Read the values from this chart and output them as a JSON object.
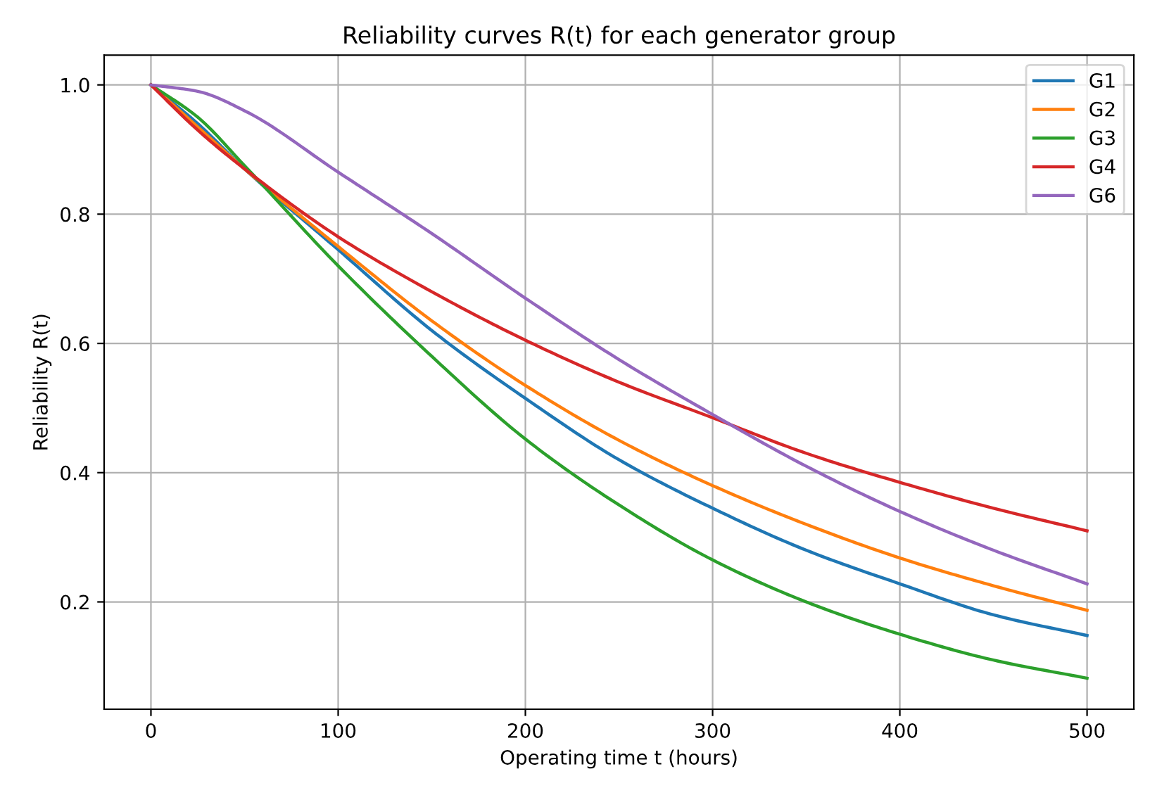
{
  "chart_data": {
    "type": "line",
    "title": "Reliability curves R(t) for each generator group",
    "xlabel": "Operating time t (hours)",
    "ylabel": "Reliability R(t)",
    "x": [
      0,
      25,
      50,
      100,
      150,
      200,
      250,
      300,
      350,
      400,
      450,
      500
    ],
    "series": [
      {
        "name": "G1",
        "color": "#1f77b4",
        "values": [
          1.0,
          0.94,
          0.87,
          0.745,
          0.62,
          0.515,
          0.42,
          0.345,
          0.28,
          0.228,
          0.18,
          0.148
        ]
      },
      {
        "name": "G2",
        "color": "#ff7f0e",
        "values": [
          1.0,
          0.935,
          0.87,
          0.75,
          0.635,
          0.535,
          0.45,
          0.38,
          0.32,
          0.268,
          0.225,
          0.187
        ]
      },
      {
        "name": "G3",
        "color": "#2ca02c",
        "values": [
          1.0,
          0.95,
          0.875,
          0.72,
          0.58,
          0.452,
          0.35,
          0.265,
          0.2,
          0.15,
          0.11,
          0.082
        ]
      },
      {
        "name": "G4",
        "color": "#d62728",
        "values": [
          1.0,
          0.93,
          0.87,
          0.765,
          0.68,
          0.605,
          0.54,
          0.485,
          0.43,
          0.385,
          0.345,
          0.31
        ]
      },
      {
        "name": "G6",
        "color": "#9467bd",
        "values": [
          1.0,
          0.99,
          0.96,
          0.865,
          0.77,
          0.67,
          0.575,
          0.49,
          0.41,
          0.34,
          0.28,
          0.228
        ]
      }
    ],
    "xlim": [
      -25,
      525
    ],
    "xticks": [
      0,
      100,
      200,
      300,
      400,
      500
    ],
    "ylim": [
      0.034,
      1.046
    ],
    "yticks": [
      {
        "value": 0.2,
        "label": "0.2"
      },
      {
        "value": 0.4,
        "label": "0.4"
      },
      {
        "value": 0.6,
        "label": "0.6"
      },
      {
        "value": 0.8,
        "label": "0.8"
      },
      {
        "value": 1.0,
        "label": "1.0"
      }
    ],
    "grid": true,
    "legend": "top right",
    "marker": "none",
    "line_style": "solid"
  }
}
